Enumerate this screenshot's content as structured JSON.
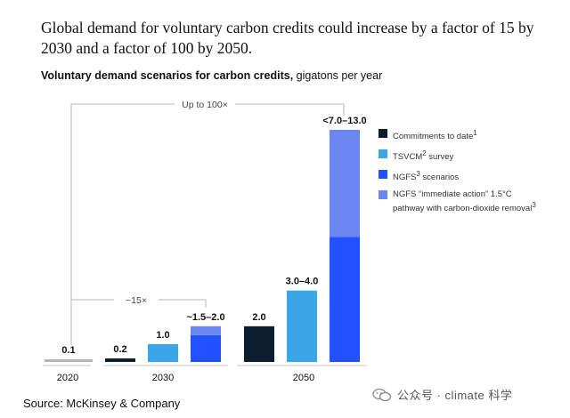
{
  "header": {
    "title": "Global demand for voluntary carbon credits could increase by a factor of 15 by 2030 and a factor of 100 by 2050.",
    "subtitle_bold": "Voluntary demand scenarios for carbon credits,",
    "subtitle_rest": " gigatons per year"
  },
  "chart_data": {
    "type": "bar",
    "title": "Voluntary demand scenarios for carbon credits, gigatons per year",
    "ylim": [
      0,
      13
    ],
    "colors": {
      "commitments": "#0b1e30",
      "tsvcm": "#3aa6e8",
      "ngfs": "#2251ff",
      "ngfs_immediate": "#6b86f0",
      "baseline": "#b5b5b5",
      "bracket": "#b5b5b5"
    },
    "bars": [
      {
        "group": "2020",
        "series": "baseline",
        "value": 0.1,
        "label": "0.1"
      },
      {
        "group": "2030",
        "series": "commitments",
        "value": 0.2,
        "label": "0.2"
      },
      {
        "group": "2030",
        "series": "tsvcm",
        "value": 1.0,
        "label": "1.0"
      },
      {
        "group": "2030",
        "series": "ngfs_stack",
        "segments": [
          {
            "series": "ngfs",
            "value": 1.5
          },
          {
            "series": "ngfs_immediate",
            "value": 0.5
          }
        ],
        "label": "~1.5–2.0"
      },
      {
        "group": "2050",
        "series": "commitments",
        "value": 2.0,
        "label": "2.0"
      },
      {
        "group": "2050",
        "series": "tsvcm",
        "value": 4.0,
        "label": "3.0–4.0"
      },
      {
        "group": "2050",
        "series": "ngfs_stack",
        "segments": [
          {
            "series": "ngfs",
            "value": 7.0
          },
          {
            "series": "ngfs_immediate",
            "value": 6.0
          }
        ],
        "label": "<7.0–13.0"
      }
    ],
    "groups": [
      "2020",
      "2030",
      "2050"
    ],
    "annotations": [
      {
        "label": "Up to 100×",
        "from": "2020",
        "to": "2050"
      },
      {
        "label": "~15×",
        "from": "2020",
        "to": "2030"
      }
    ],
    "legend": [
      {
        "key": "commitments",
        "label": "Commitments to date",
        "sup": "1"
      },
      {
        "key": "tsvcm",
        "label": "TSVCM",
        "sup": "2",
        "label_after": " survey"
      },
      {
        "key": "ngfs",
        "label": "NGFS",
        "sup": "3",
        "label_after": " scenarios"
      },
      {
        "key": "ngfs_immediate",
        "label": "NGFS “immediate action” 1.5°C pathway with carbon-dioxide removal",
        "sup": "3"
      }
    ]
  },
  "footer": {
    "source": "Source: McKinsey & Company",
    "watermark": "公众号 · climate 科学"
  }
}
